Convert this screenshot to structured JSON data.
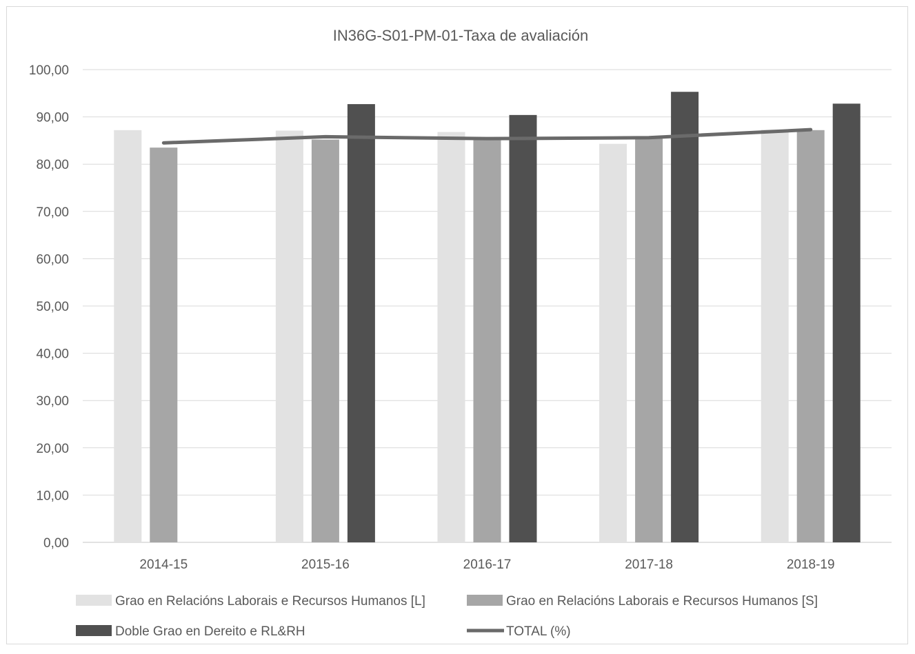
{
  "chart_data": {
    "type": "bar",
    "title": "IN36G-S01-PM-01-Taxa de avaliación",
    "categories": [
      "2014-15",
      "2015-16",
      "2016-17",
      "2017-18",
      "2018-19"
    ],
    "ylim": [
      0,
      100
    ],
    "yticks": [
      "0,00",
      "10,00",
      "20,00",
      "30,00",
      "40,00",
      "50,00",
      "60,00",
      "70,00",
      "80,00",
      "90,00",
      "100,00"
    ],
    "grid": true,
    "legend_position": "bottom",
    "series": [
      {
        "name": "Grao en Relacións Laborais e Recursos Humanos [L]",
        "type": "bar",
        "color": "#e2e2e2",
        "values": [
          87.2,
          87.1,
          86.8,
          84.3,
          87.3
        ]
      },
      {
        "name": "Grao en Relacións Laborais e Recursos Humanos [S]",
        "type": "bar",
        "color": "#a6a6a6",
        "values": [
          83.5,
          85.2,
          85.5,
          85.7,
          87.2
        ]
      },
      {
        "name": "Doble Grao en Dereito e RL&RH",
        "type": "bar",
        "color": "#505050",
        "values": [
          null,
          92.7,
          90.4,
          95.3,
          92.8
        ]
      },
      {
        "name": "TOTAL (%)",
        "type": "line",
        "color": "#6a6a6a",
        "values": [
          84.5,
          85.8,
          85.4,
          85.6,
          87.3
        ]
      }
    ]
  }
}
